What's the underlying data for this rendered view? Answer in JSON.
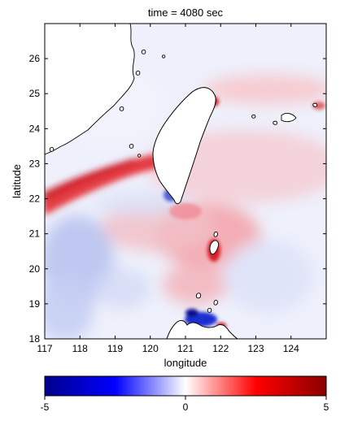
{
  "figure": {
    "title": "time = 4080 sec",
    "xlabel": "longitude",
    "ylabel": "latitude"
  },
  "axes": {
    "x_ticks": [
      "117",
      "118",
      "119",
      "120",
      "121",
      "122",
      "123",
      "124"
    ],
    "y_ticks": [
      "18",
      "19",
      "20",
      "21",
      "22",
      "23",
      "24",
      "25",
      "26"
    ],
    "x_range": [
      117,
      125
    ],
    "y_range": [
      18,
      27
    ]
  },
  "colorbar": {
    "min_label": "-5",
    "mid_label": "0",
    "max_label": "5",
    "colormap": [
      "#00008b",
      "#0000ff",
      "#ffffff",
      "#ff0000",
      "#8b0000"
    ]
  },
  "colors": {
    "background_field": "#eef0fb",
    "land": "#ffffff",
    "coastline": "#000000"
  }
}
